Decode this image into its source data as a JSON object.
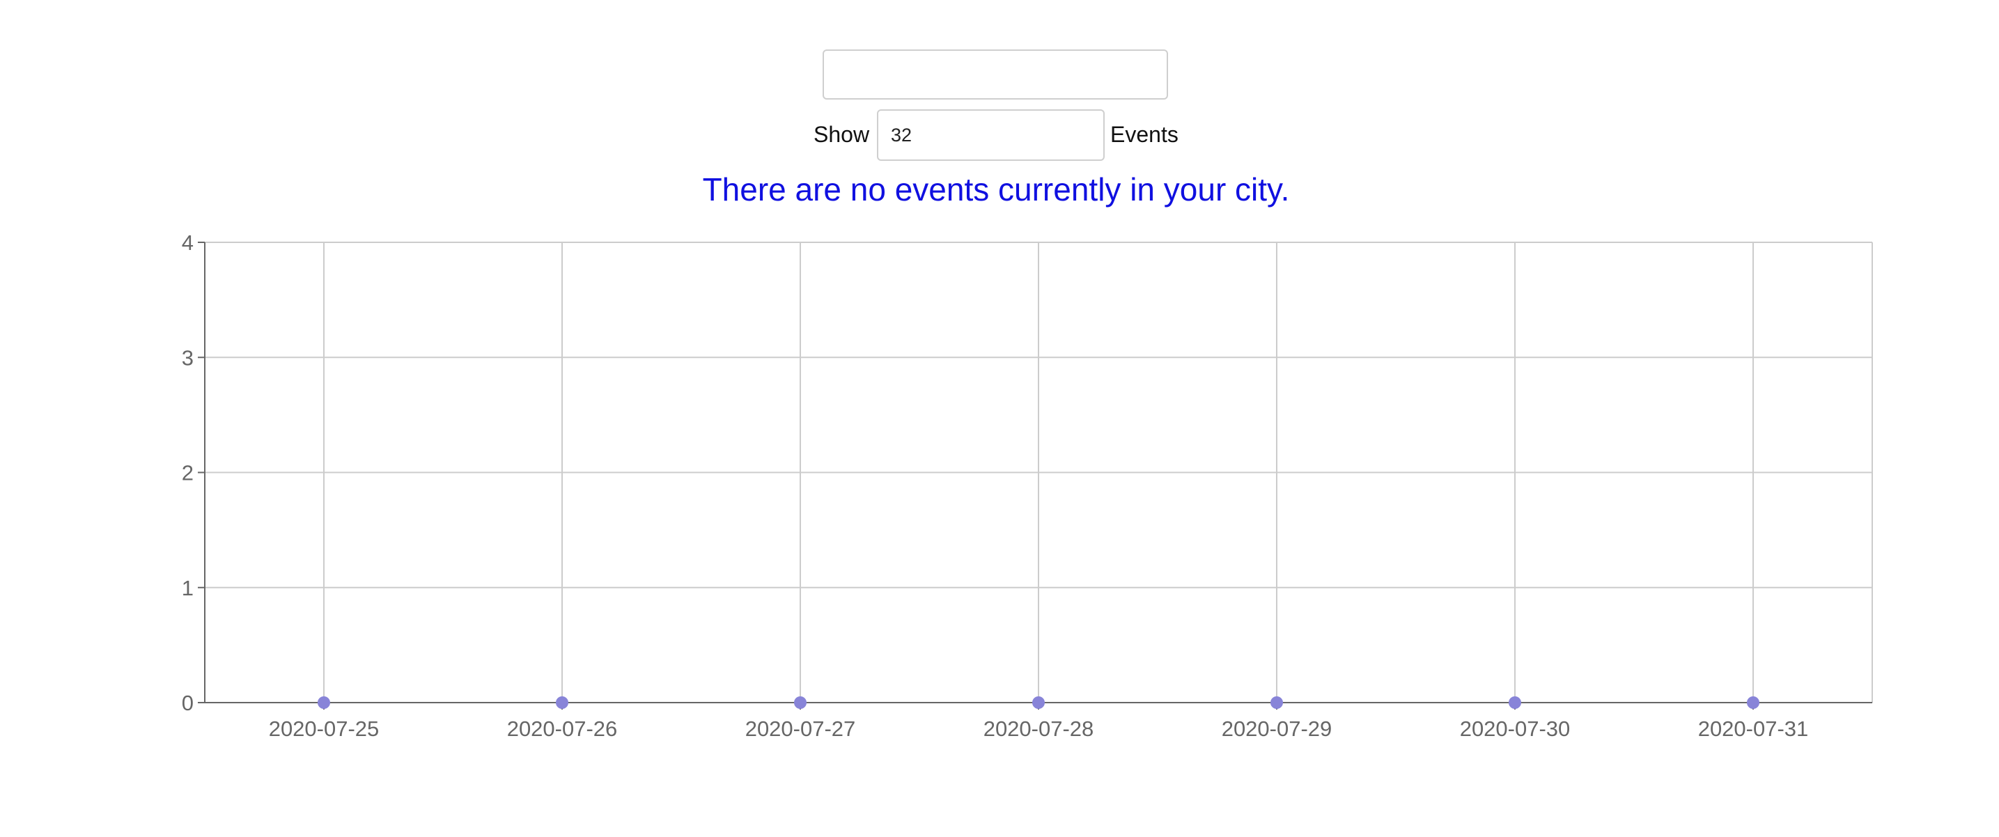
{
  "search": {
    "city_value": "",
    "city_placeholder": ""
  },
  "controls": {
    "show_label": "Show",
    "count_value": "32",
    "events_label": "Events"
  },
  "alert": {
    "message": "There are no events currently in your city.",
    "color": "#1010e0"
  },
  "colors": {
    "point": "#8884d8",
    "grid": "#cccccc",
    "axis": "#666666"
  },
  "chart_data": {
    "type": "scatter",
    "x": [
      "2020-07-25",
      "2020-07-26",
      "2020-07-27",
      "2020-07-28",
      "2020-07-29",
      "2020-07-30",
      "2020-07-31"
    ],
    "series": [
      {
        "values": [
          0,
          0,
          0,
          0,
          0,
          0,
          0
        ]
      }
    ],
    "ylim": [
      0,
      4
    ],
    "yticks": [
      0,
      1,
      2,
      3,
      4
    ],
    "grid": true
  }
}
